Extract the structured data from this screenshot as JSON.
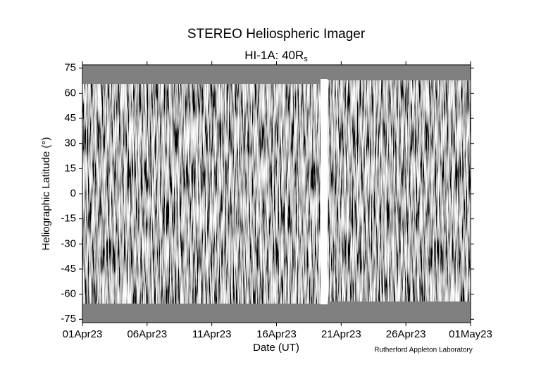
{
  "chart_data": {
    "type": "image",
    "title": "STEREO Heliospheric Imager",
    "subtitle": [
      "HI-1A: 40R",
      "s"
    ],
    "xlabel": "Date (UT)",
    "ylabel": "Heliographic Latitude (°)",
    "credit": "Rutherford Appleton Laboratory",
    "xlim": [
      "01Apr23",
      "01May23"
    ],
    "xticks": [
      "01Apr23",
      "06Apr23",
      "11Apr23",
      "16Apr23",
      "21Apr23",
      "26Apr23",
      "01May23"
    ],
    "ylim": [
      -77,
      77
    ],
    "yticks": [
      -75,
      -60,
      -45,
      -30,
      -15,
      0,
      15,
      30,
      45,
      60,
      75
    ]
  }
}
